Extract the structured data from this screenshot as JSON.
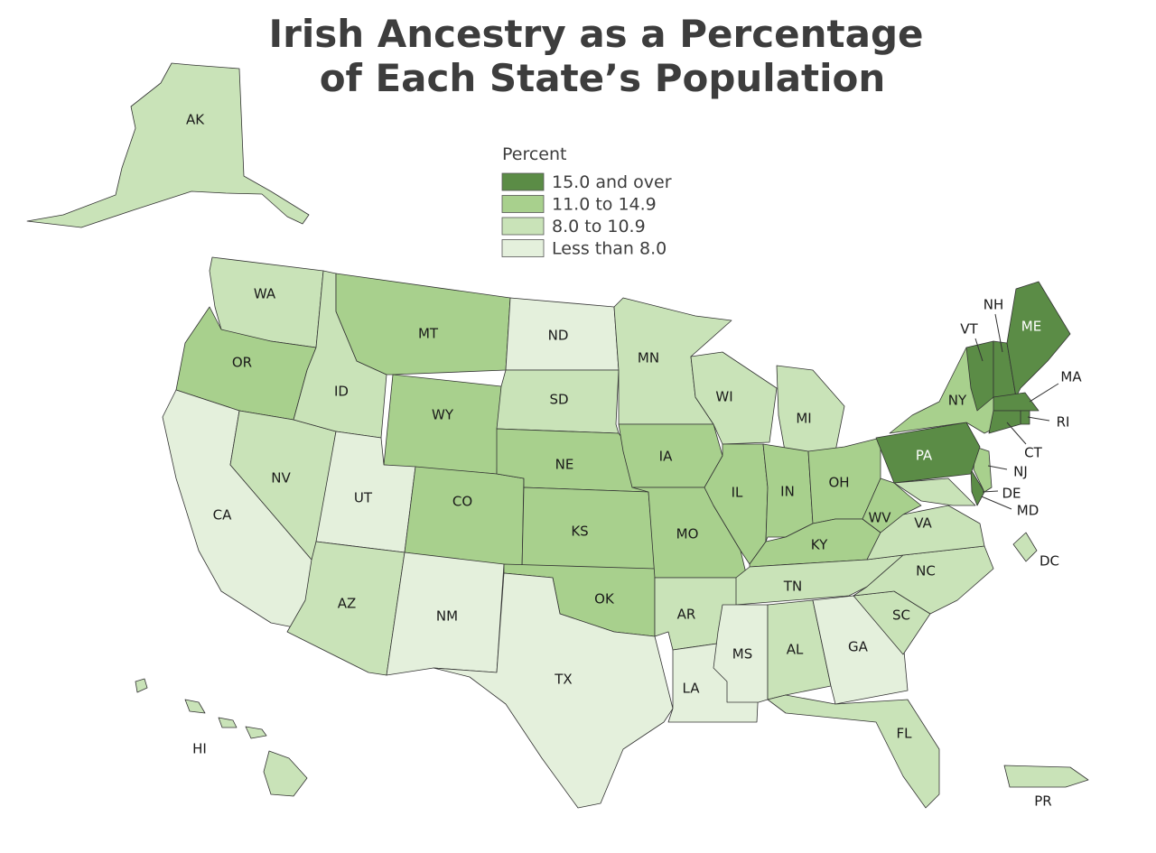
{
  "title_lines": [
    "Irish Ancestry as a Percentage",
    "of Each State’s Population"
  ],
  "legend": {
    "title": "Percent",
    "items": [
      {
        "label": "15.0 and over",
        "color": "#5b8c46"
      },
      {
        "label": "11.0 to 14.9",
        "color": "#a8d08d"
      },
      {
        "label": "8.0 to 10.9",
        "color": "#c9e3b8"
      },
      {
        "label": "Less than 8.0",
        "color": "#e4f0dc"
      }
    ]
  },
  "states": [
    {
      "label": "AK",
      "class": 2
    },
    {
      "label": "WA",
      "class": 2
    },
    {
      "label": "OR",
      "class": 1
    },
    {
      "label": "CA",
      "class": 3
    },
    {
      "label": "NV",
      "class": 2
    },
    {
      "label": "ID",
      "class": 2
    },
    {
      "label": "MT",
      "class": 1
    },
    {
      "label": "WY",
      "class": 1
    },
    {
      "label": "UT",
      "class": 3
    },
    {
      "label": "AZ",
      "class": 2
    },
    {
      "label": "CO",
      "class": 1
    },
    {
      "label": "NM",
      "class": 3
    },
    {
      "label": "ND",
      "class": 3
    },
    {
      "label": "SD",
      "class": 2
    },
    {
      "label": "NE",
      "class": 1
    },
    {
      "label": "KS",
      "class": 1
    },
    {
      "label": "OK",
      "class": 1
    },
    {
      "label": "TX",
      "class": 3
    },
    {
      "label": "MN",
      "class": 2
    },
    {
      "label": "IA",
      "class": 1
    },
    {
      "label": "MO",
      "class": 1
    },
    {
      "label": "AR",
      "class": 2
    },
    {
      "label": "LA",
      "class": 3
    },
    {
      "label": "WI",
      "class": 2
    },
    {
      "label": "IL",
      "class": 1
    },
    {
      "label": "MI",
      "class": 2
    },
    {
      "label": "IN",
      "class": 1
    },
    {
      "label": "OH",
      "class": 1
    },
    {
      "label": "KY",
      "class": 1
    },
    {
      "label": "TN",
      "class": 2
    },
    {
      "label": "MS",
      "class": 3
    },
    {
      "label": "AL",
      "class": 2
    },
    {
      "label": "GA",
      "class": 3
    },
    {
      "label": "FL",
      "class": 2
    },
    {
      "label": "SC",
      "class": 2
    },
    {
      "label": "NC",
      "class": 2
    },
    {
      "label": "VA",
      "class": 2
    },
    {
      "label": "WV",
      "class": 1
    },
    {
      "label": "MD",
      "class": 2
    },
    {
      "label": "DE",
      "class": 0
    },
    {
      "label": "NJ",
      "class": 1
    },
    {
      "label": "PA",
      "class": 0
    },
    {
      "label": "NY",
      "class": 1
    },
    {
      "label": "VT",
      "class": 0
    },
    {
      "label": "NH",
      "class": 0
    },
    {
      "label": "ME",
      "class": 0
    },
    {
      "label": "MA",
      "class": 0
    },
    {
      "label": "RI",
      "class": 0
    },
    {
      "label": "CT",
      "class": 0
    },
    {
      "label": "DC",
      "class": 2
    },
    {
      "label": "HI",
      "class": 2
    },
    {
      "label": "PR",
      "class": 2
    }
  ]
}
